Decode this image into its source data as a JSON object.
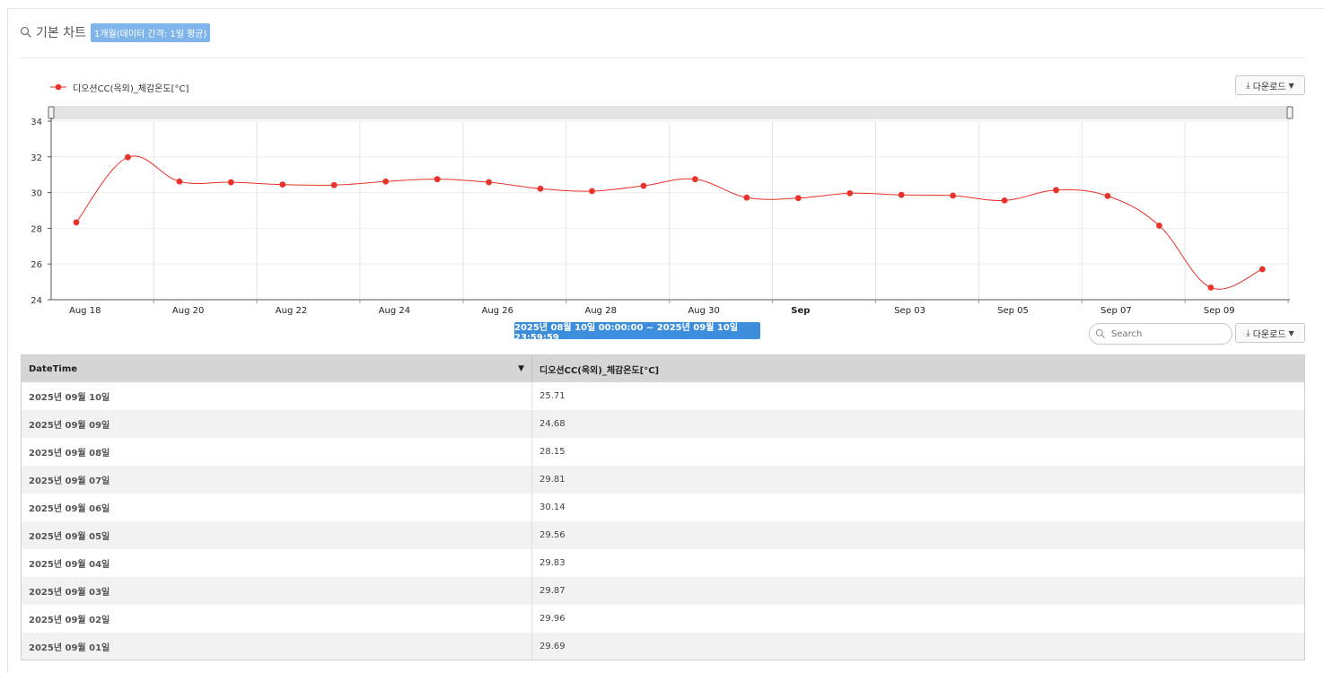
{
  "header": {
    "title": "기본 차트",
    "badge": "1개월(데이터 간격: 1일 평균)"
  },
  "chart_toolbar": {
    "download_label": "다운로드"
  },
  "chart_data": {
    "type": "line",
    "x": [
      "2025-08-18",
      "2025-08-19",
      "2025-08-20",
      "2025-08-21",
      "2025-08-22",
      "2025-08-23",
      "2025-08-24",
      "2025-08-25",
      "2025-08-26",
      "2025-08-27",
      "2025-08-28",
      "2025-08-29",
      "2025-08-30",
      "2025-08-31",
      "2025-09-01",
      "2025-09-02",
      "2025-09-03",
      "2025-09-04",
      "2025-09-05",
      "2025-09-06",
      "2025-09-07",
      "2025-09-08",
      "2025-09-09",
      "2025-09-10"
    ],
    "series": [
      {
        "name": "디오션CC(옥외)_체감온도[°C]",
        "color": "#e8322a",
        "values": [
          28.33,
          31.98,
          30.62,
          30.58,
          30.45,
          30.42,
          30.62,
          30.75,
          30.58,
          30.22,
          30.08,
          30.38,
          30.75,
          29.72,
          29.69,
          29.96,
          29.87,
          29.83,
          29.56,
          30.14,
          29.81,
          28.15,
          24.68,
          25.71
        ]
      }
    ],
    "x_tick_labels": [
      "Aug 18",
      "Aug 20",
      "Aug 22",
      "Aug 24",
      "Aug 26",
      "Aug 28",
      "Aug 30",
      "Sep",
      "Sep 03",
      "Sep 05",
      "Sep 07",
      "Sep 09"
    ],
    "y_ticks": [
      24,
      26,
      28,
      30,
      32,
      34
    ],
    "ylim": [
      24,
      34
    ],
    "grid": true,
    "legend_position": "top-left"
  },
  "range_label": "2025년 08월 10일 00:00:00 ~ 2025년 09월 10일 23:59:59",
  "table_toolbar": {
    "search_placeholder": "Search",
    "download_label": "다운로드"
  },
  "table": {
    "columns": [
      "DateTime",
      "디오션CC(옥외)_체감온도[°C]"
    ],
    "sort_indicator": "▼",
    "rows": [
      [
        "2025년 09월 10일",
        "25.71"
      ],
      [
        "2025년 09월 09일",
        "24.68"
      ],
      [
        "2025년 09월 08일",
        "28.15"
      ],
      [
        "2025년 09월 07일",
        "29.81"
      ],
      [
        "2025년 09월 06일",
        "30.14"
      ],
      [
        "2025년 09월 05일",
        "29.56"
      ],
      [
        "2025년 09월 04일",
        "29.83"
      ],
      [
        "2025년 09월 03일",
        "29.87"
      ],
      [
        "2025년 09월 02일",
        "29.96"
      ],
      [
        "2025년 09월 01일",
        "29.69"
      ]
    ]
  }
}
